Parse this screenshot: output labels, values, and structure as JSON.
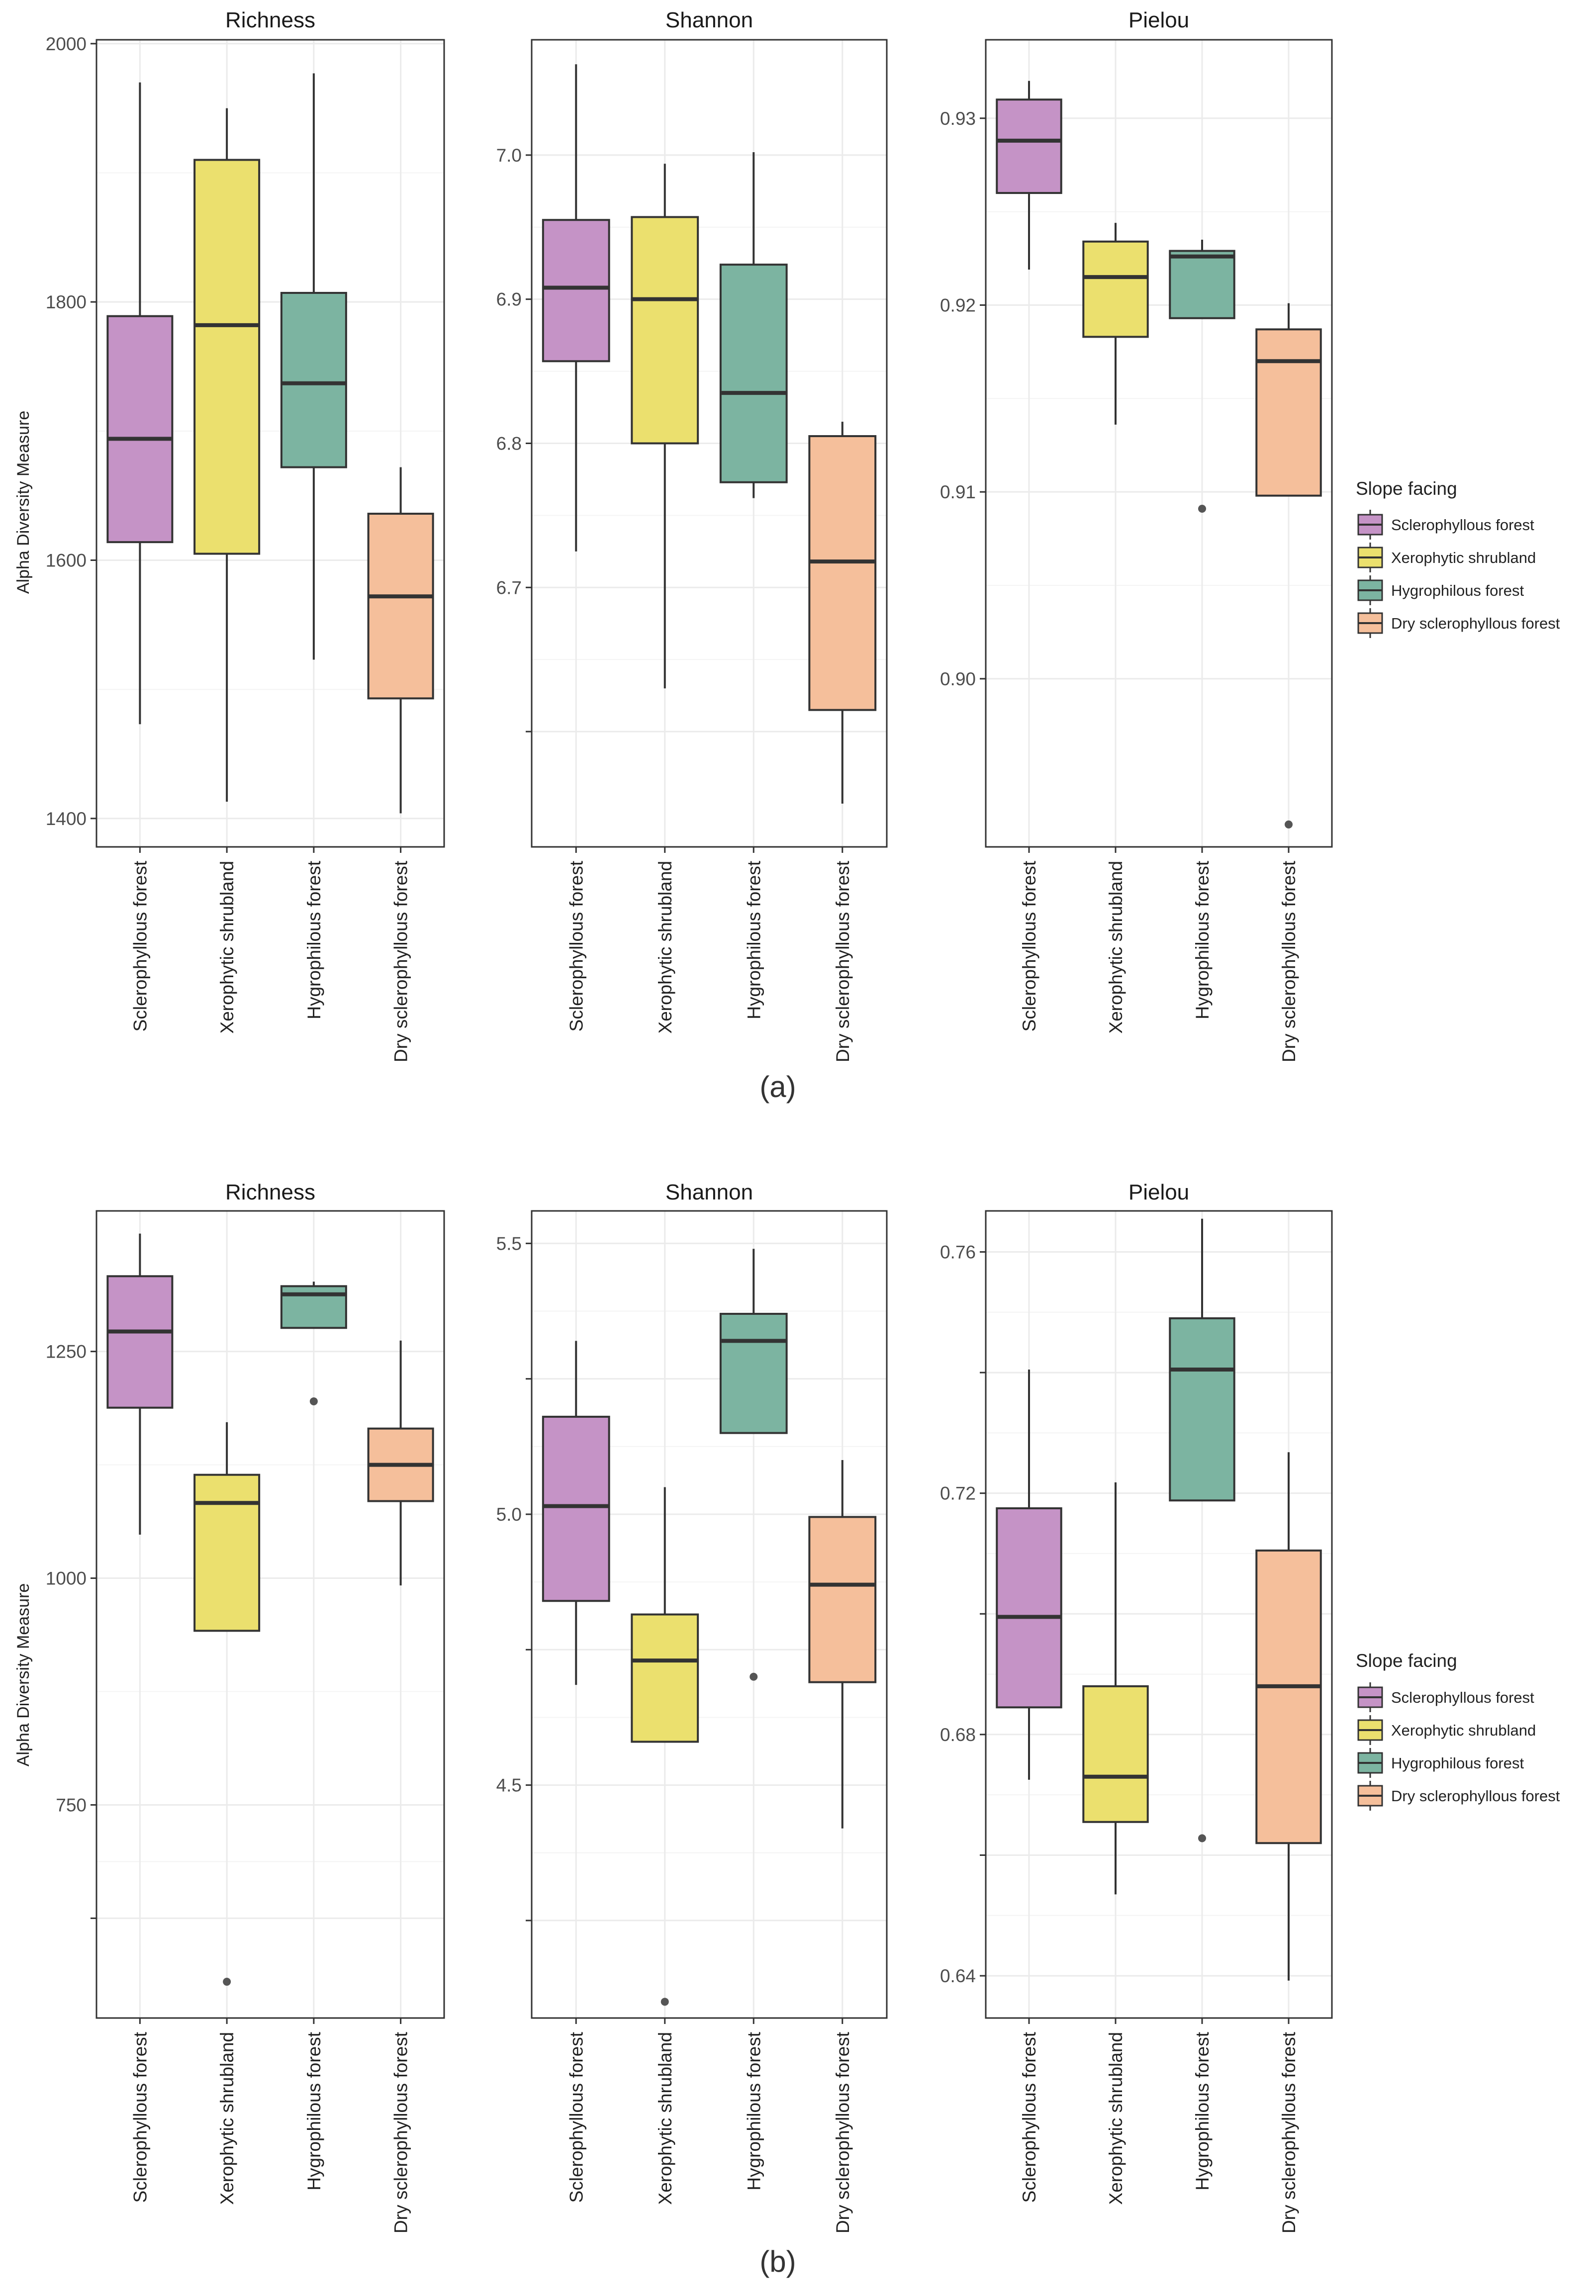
{
  "figure": {
    "y_axis_label": "Alpha Diversity Measure",
    "legend_title": "Slope facing",
    "categories": [
      "Sclerophyllous forest",
      "Xerophytic shrubland",
      "Hygrophilous forest",
      "Dry sclerophyllous forest"
    ],
    "colors": {
      "Sclerophyllous forest": "#c593c6",
      "Xerophytic shrubland": "#ebe06e",
      "Hygrophilous forest": "#7cb4a1",
      "Dry sclerophyllous forest": "#f5bf9b"
    },
    "panel_labels": [
      "(a)",
      "(b)"
    ]
  },
  "chart_data": [
    {
      "id": "a-richness",
      "row": "a",
      "type": "box",
      "title": "Richness",
      "ylim": [
        1378,
        2003
      ],
      "yticks": [
        1400,
        1600,
        1800,
        2000
      ],
      "yticklabels": [
        "1400",
        "1600",
        "1800",
        "2000"
      ],
      "boxes": [
        {
          "category": "Sclerophyllous forest",
          "whisker_low": 1473,
          "q1": 1614,
          "median": 1694,
          "q3": 1789,
          "whisker_high": 1970,
          "outliers": []
        },
        {
          "category": "Xerophytic shrubland",
          "whisker_low": 1413,
          "q1": 1605,
          "median": 1782,
          "q3": 1910,
          "whisker_high": 1950,
          "outliers": []
        },
        {
          "category": "Hygrophilous forest",
          "whisker_low": 1523,
          "q1": 1672,
          "median": 1737,
          "q3": 1807,
          "whisker_high": 1977,
          "outliers": []
        },
        {
          "category": "Dry sclerophyllous forest",
          "whisker_low": 1404,
          "q1": 1493,
          "median": 1572,
          "q3": 1636,
          "whisker_high": 1672,
          "outliers": []
        }
      ]
    },
    {
      "id": "a-shannon",
      "row": "a",
      "type": "box",
      "title": "Shannon",
      "ylim": [
        6.52,
        7.08
      ],
      "yticks": [
        6.6,
        6.7,
        6.8,
        6.9,
        7.0
      ],
      "yticklabels": [
        "",
        "6.7",
        "6.8",
        "6.9",
        "7.0"
      ],
      "boxes": [
        {
          "category": "Sclerophyllous forest",
          "whisker_low": 6.725,
          "q1": 6.857,
          "median": 6.908,
          "q3": 6.955,
          "whisker_high": 7.063,
          "outliers": []
        },
        {
          "category": "Xerophytic shrubland",
          "whisker_low": 6.63,
          "q1": 6.8,
          "median": 6.9,
          "q3": 6.957,
          "whisker_high": 6.994,
          "outliers": []
        },
        {
          "category": "Hygrophilous forest",
          "whisker_low": 6.762,
          "q1": 6.773,
          "median": 6.835,
          "q3": 6.924,
          "whisker_high": 7.002,
          "outliers": []
        },
        {
          "category": "Dry sclerophyllous forest",
          "whisker_low": 6.55,
          "q1": 6.615,
          "median": 6.718,
          "q3": 6.805,
          "whisker_high": 6.815,
          "outliers": []
        }
      ]
    },
    {
      "id": "a-pielou",
      "row": "a",
      "type": "box",
      "title": "Pielou",
      "ylim": [
        0.891,
        0.9342
      ],
      "yticks": [
        0.9,
        0.91,
        0.92,
        0.93
      ],
      "yticklabels": [
        "0.90",
        "0.91",
        "0.92",
        "0.93"
      ],
      "boxes": [
        {
          "category": "Sclerophyllous forest",
          "whisker_low": 0.9219,
          "q1": 0.926,
          "median": 0.9288,
          "q3": 0.931,
          "whisker_high": 0.932,
          "outliers": []
        },
        {
          "category": "Xerophytic shrubland",
          "whisker_low": 0.9136,
          "q1": 0.9183,
          "median": 0.9215,
          "q3": 0.9234,
          "whisker_high": 0.9244,
          "outliers": []
        },
        {
          "category": "Hygrophilous forest",
          "whisker_low": 0.9193,
          "q1": 0.9193,
          "median": 0.9226,
          "q3": 0.9229,
          "whisker_high": 0.9235,
          "outliers": [
            0.9091
          ]
        },
        {
          "category": "Dry sclerophyllous forest",
          "whisker_low": 0.9098,
          "q1": 0.9098,
          "median": 0.917,
          "q3": 0.9187,
          "whisker_high": 0.9201,
          "outliers": [
            0.8922
          ]
        }
      ]
    },
    {
      "id": "b-richness",
      "row": "b",
      "type": "box",
      "title": "Richness",
      "ylim": [
        515,
        1405
      ],
      "yticks": [
        625,
        750,
        1000,
        1250
      ],
      "yticklabels": [
        "",
        "750",
        "1000",
        "1250"
      ],
      "boxes": [
        {
          "category": "Sclerophyllous forest",
          "whisker_low": 1048,
          "q1": 1188,
          "median": 1272,
          "q3": 1333,
          "whisker_high": 1380,
          "outliers": []
        },
        {
          "category": "Xerophytic shrubland",
          "whisker_low": 942,
          "q1": 942,
          "median": 1083,
          "q3": 1114,
          "whisker_high": 1172,
          "outliers": [
            555
          ]
        },
        {
          "category": "Hygrophilous forest",
          "whisker_low": 1276,
          "q1": 1276,
          "median": 1313,
          "q3": 1322,
          "whisker_high": 1327,
          "outliers": [
            1195
          ]
        },
        {
          "category": "Dry sclerophyllous forest",
          "whisker_low": 992,
          "q1": 1085,
          "median": 1125,
          "q3": 1165,
          "whisker_high": 1262,
          "outliers": []
        }
      ]
    },
    {
      "id": "b-shannon",
      "row": "b",
      "type": "box",
      "title": "Shannon",
      "ylim": [
        4.07,
        5.56
      ],
      "yticks": [
        4.25,
        4.5,
        4.75,
        5.0,
        5.25,
        5.5
      ],
      "yticklabels": [
        "",
        "4.5",
        "",
        "5.0",
        "",
        "5.5"
      ],
      "boxes": [
        {
          "category": "Sclerophyllous forest",
          "whisker_low": 4.685,
          "q1": 4.84,
          "median": 5.015,
          "q3": 5.18,
          "whisker_high": 5.32,
          "outliers": []
        },
        {
          "category": "Xerophytic shrubland",
          "whisker_low": 4.58,
          "q1": 4.58,
          "median": 4.73,
          "q3": 4.815,
          "whisker_high": 5.05,
          "outliers": [
            4.1
          ]
        },
        {
          "category": "Hygrophilous forest",
          "whisker_low": 5.15,
          "q1": 5.15,
          "median": 5.32,
          "q3": 5.37,
          "whisker_high": 5.49,
          "outliers": [
            4.7
          ]
        },
        {
          "category": "Dry sclerophyllous forest",
          "whisker_low": 4.42,
          "q1": 4.69,
          "median": 4.87,
          "q3": 4.995,
          "whisker_high": 5.1,
          "outliers": []
        }
      ]
    },
    {
      "id": "b-pielou",
      "row": "b",
      "type": "box",
      "title": "Pielou",
      "ylim": [
        0.633,
        0.7668
      ],
      "yticks": [
        0.64,
        0.66,
        0.68,
        0.7,
        0.72,
        0.74,
        0.76
      ],
      "yticklabels": [
        "0.64",
        "",
        "0.68",
        "",
        "0.72",
        "",
        "0.76"
      ],
      "boxes": [
        {
          "category": "Sclerophyllous forest",
          "whisker_low": 0.6725,
          "q1": 0.6845,
          "median": 0.6995,
          "q3": 0.7175,
          "whisker_high": 0.7405,
          "outliers": []
        },
        {
          "category": "Xerophytic shrubland",
          "whisker_low": 0.6535,
          "q1": 0.6655,
          "median": 0.673,
          "q3": 0.688,
          "whisker_high": 0.7218,
          "outliers": []
        },
        {
          "category": "Hygrophilous forest",
          "whisker_low": 0.7188,
          "q1": 0.7188,
          "median": 0.7405,
          "q3": 0.749,
          "whisker_high": 0.7655,
          "outliers": [
            0.6628
          ]
        },
        {
          "category": "Dry sclerophyllous forest",
          "whisker_low": 0.6392,
          "q1": 0.662,
          "median": 0.688,
          "q3": 0.7105,
          "whisker_high": 0.7268,
          "outliers": []
        }
      ]
    }
  ]
}
